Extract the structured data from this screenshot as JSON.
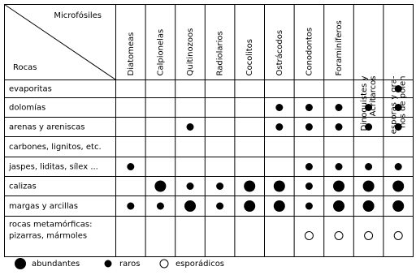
{
  "table": {
    "corner": {
      "top": "Microfósiles",
      "bottom": "Rocas"
    },
    "columns": [
      [
        "Diatomeas"
      ],
      [
        "Calpionelas"
      ],
      [
        "Quitinozoos"
      ],
      [
        "Radiolarios"
      ],
      [
        "Cocolitos"
      ],
      [
        "Ostrácodos"
      ],
      [
        "Conodontos"
      ],
      [
        "Foraminíferos"
      ],
      [
        "Dinoquistes y",
        "Acritarcos"
      ],
      [
        "esporas y gra-",
        "nos de polen"
      ]
    ],
    "rows": [
      {
        "label": [
          "evaporitas"
        ],
        "cells": [
          null,
          null,
          null,
          null,
          null,
          null,
          null,
          null,
          null,
          1
        ]
      },
      {
        "label": [
          "dolomías"
        ],
        "cells": [
          null,
          null,
          null,
          null,
          null,
          1,
          1,
          1,
          1,
          1
        ]
      },
      {
        "label": [
          "arenas y areniscas"
        ],
        "cells": [
          null,
          null,
          1,
          null,
          null,
          1,
          1,
          1,
          1,
          1
        ]
      },
      {
        "label": [
          "carbones, lignitos, etc."
        ],
        "cells": [
          null,
          null,
          null,
          null,
          null,
          null,
          null,
          null,
          null,
          null
        ]
      },
      {
        "label": [
          "jaspes, liditas, sílex ..."
        ],
        "cells": [
          1,
          null,
          null,
          null,
          null,
          null,
          1,
          1,
          1,
          1
        ]
      },
      {
        "label": [
          "calizas"
        ],
        "cells": [
          null,
          0,
          1,
          1,
          0,
          0,
          1,
          0,
          0,
          0
        ]
      },
      {
        "label": [
          "margas y arcillas"
        ],
        "cells": [
          1,
          1,
          0,
          1,
          0,
          0,
          1,
          0,
          0,
          0
        ]
      },
      {
        "label": [
          "rocas metamórficas:",
          "pizarras, mármoles"
        ],
        "cells": [
          null,
          null,
          null,
          null,
          null,
          null,
          2,
          2,
          2,
          2
        ]
      }
    ]
  },
  "legend": [
    "abundantes",
    "raros",
    "esporádicos"
  ]
}
